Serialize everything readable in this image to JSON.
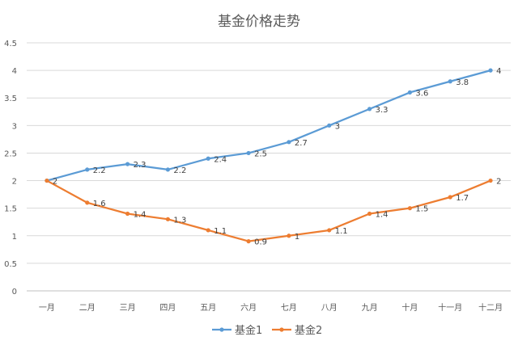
{
  "chart_data": {
    "type": "line",
    "title": "基金价格走势",
    "xlabel": "",
    "ylabel": "",
    "ylim": [
      0,
      4.5
    ],
    "yticks": [
      "0",
      "0.5",
      "1",
      "1.5",
      "2",
      "2.5",
      "3",
      "3.5",
      "4",
      "4.5"
    ],
    "categories": [
      "一月",
      "二月",
      "三月",
      "四月",
      "五月",
      "六月",
      "七月",
      "八月",
      "九月",
      "十月",
      "十一月",
      "十二月"
    ],
    "series": [
      {
        "name": "基金1",
        "color": "#5B9BD5",
        "values": [
          2,
          2.2,
          2.3,
          2.2,
          2.4,
          2.5,
          2.7,
          3,
          3.3,
          3.6,
          3.8,
          4
        ],
        "labels": [
          "2",
          "2.2",
          "2.3",
          "2.2",
          "2.4",
          "2.5",
          "2.7",
          "3",
          "3.3",
          "3.6",
          "3.8",
          "4"
        ]
      },
      {
        "name": "基金2",
        "color": "#ED7D31",
        "values": [
          2,
          1.6,
          1.4,
          1.3,
          1.1,
          0.9,
          1,
          1.1,
          1.4,
          1.5,
          1.7,
          2
        ],
        "labels": [
          "",
          "1.6",
          "1.4",
          "1.3",
          "1.1",
          "0.9",
          "1",
          "1.1",
          "1.4",
          "1.5",
          "1.7",
          "2"
        ]
      }
    ],
    "grid": true,
    "legend": "bottom"
  }
}
